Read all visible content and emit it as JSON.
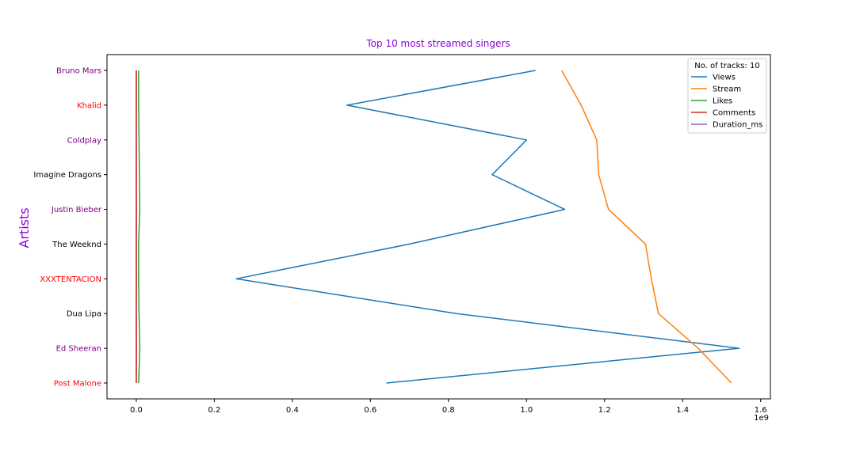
{
  "chart_data": {
    "type": "line",
    "title": "Top 10 most streamed singers",
    "title_color": "#8b00d6",
    "xlabel": "",
    "ylabel": "Artists",
    "ylabel_color": "#8b00d6",
    "x_scale_factor": 1000000000,
    "x_offset_label": "1e9",
    "xlim": [
      -0.075,
      1.625
    ],
    "xticks": [
      0.0,
      0.2,
      0.4,
      0.6,
      0.8,
      1.0,
      1.2,
      1.4,
      1.6
    ],
    "xtick_labels": [
      "0.0",
      "0.2",
      "0.4",
      "0.6",
      "0.8",
      "1.0",
      "1.2",
      "1.4",
      "1.6"
    ],
    "categories": [
      "Bruno Mars",
      "Khalid",
      "Coldplay",
      "Imagine Dragons",
      "Justin Bieber",
      "The Weeknd",
      "XXXTENTACION",
      "Dua Lipa",
      "Ed Sheeran",
      "Post Malone"
    ],
    "category_colors": [
      "#800080",
      "#ff0000",
      "#800080",
      "#000000",
      "#800080",
      "#000000",
      "#ff0000",
      "#000000",
      "#800080",
      "#ff0000"
    ],
    "series": [
      {
        "name": "Views",
        "color": "#1f77b4",
        "values": [
          1.023,
          0.54,
          1.0,
          0.912,
          1.098,
          0.7,
          0.256,
          0.82,
          1.545,
          0.641
        ]
      },
      {
        "name": "Stream",
        "color": "#ff7f0e",
        "values": [
          1.09,
          1.14,
          1.18,
          1.185,
          1.21,
          1.305,
          1.32,
          1.338,
          1.44,
          1.525
        ]
      },
      {
        "name": "Likes",
        "color": "#2ca02c",
        "values": [
          0.006,
          0.006,
          0.007,
          0.008,
          0.009,
          0.006,
          0.006,
          0.007,
          0.009,
          0.006
        ]
      },
      {
        "name": "Comments",
        "color": "#d62728",
        "values": [
          0.0002,
          0.0001,
          0.0002,
          0.0002,
          0.0003,
          0.0002,
          0.0003,
          0.0002,
          0.0003,
          0.0002
        ]
      },
      {
        "name": "Duration_ms",
        "color": "#9467bd",
        "values": [
          2e-07,
          2e-07,
          2e-07,
          2e-07,
          2e-07,
          2e-07,
          2e-07,
          2e-07,
          2e-07,
          2e-07
        ]
      }
    ],
    "legend": {
      "title": "No. of tracks: 10",
      "placement": "top-right"
    },
    "grid": false
  }
}
